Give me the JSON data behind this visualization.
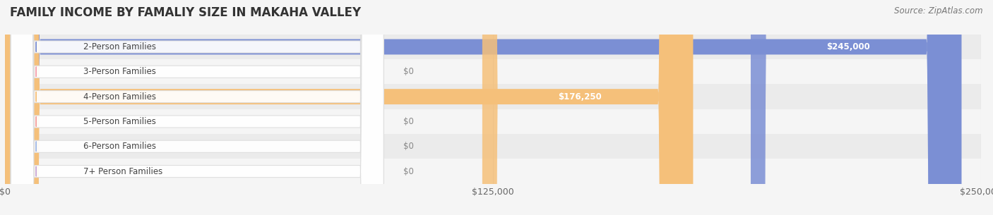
{
  "title": "FAMILY INCOME BY FAMALIY SIZE IN MAKAHA VALLEY",
  "source": "Source: ZipAtlas.com",
  "categories": [
    "2-Person Families",
    "3-Person Families",
    "4-Person Families",
    "5-Person Families",
    "6-Person Families",
    "7+ Person Families"
  ],
  "values": [
    245000,
    0,
    176250,
    0,
    0,
    0
  ],
  "bar_colors": [
    "#7b8fd4",
    "#f4a0b0",
    "#f5c07a",
    "#f4a0a0",
    "#a0b8e8",
    "#c8a8d8"
  ],
  "pill_circle_colors": [
    "#7b8fd4",
    "#f4a0b0",
    "#f5c07a",
    "#f4a0a0",
    "#a0b8e8",
    "#c8a8d8"
  ],
  "row_bg_odd": "#eeeeee",
  "row_bg_even": "#f8f8f8",
  "xlim": [
    0,
    250000
  ],
  "xticks": [
    0,
    125000,
    250000
  ],
  "xtick_labels": [
    "$0",
    "$125,000",
    "$250,000"
  ],
  "bg_color": "#f5f5f5",
  "title_fontsize": 12,
  "source_fontsize": 8.5,
  "bar_height": 0.62,
  "value_label_fontsize": 8.5,
  "pill_text_color": "#444444",
  "grid_color": "#cccccc"
}
